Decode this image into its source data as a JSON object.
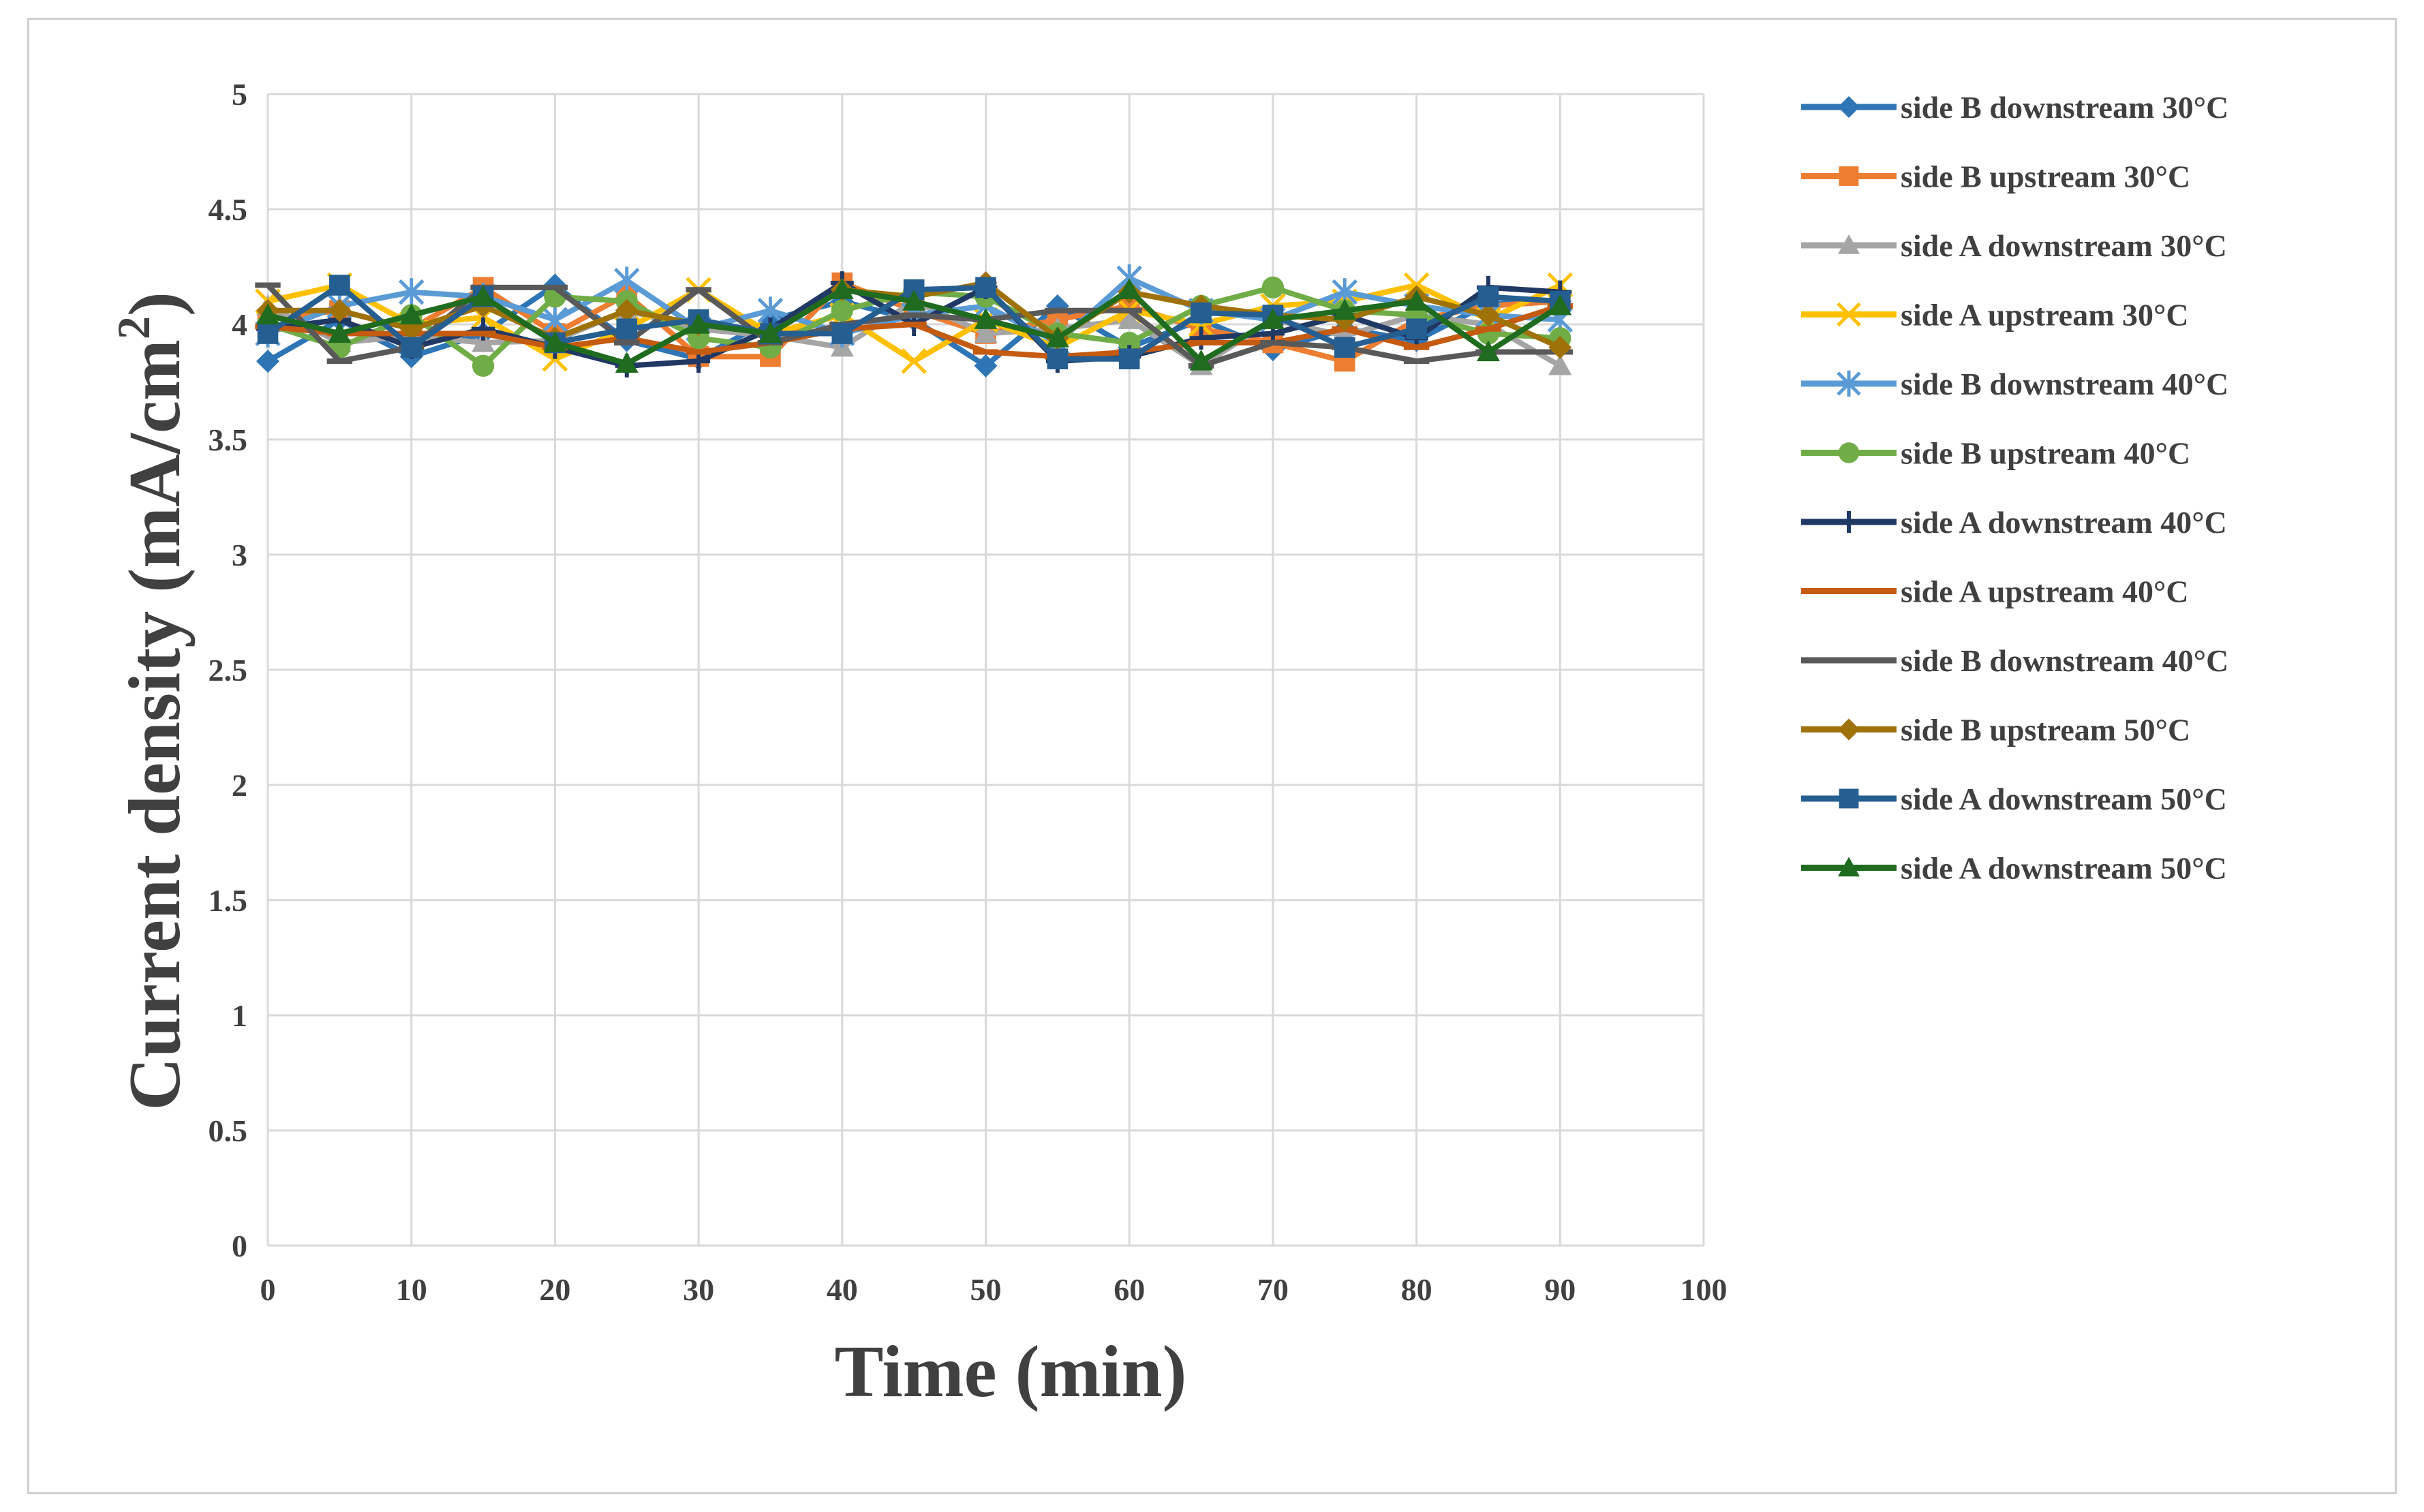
{
  "chart_data": {
    "type": "line",
    "title": "",
    "xlabel": "Time (min)",
    "ylabel_main": "Current density (mA/cm",
    "ylabel_sup": "2",
    "ylabel_close": ")",
    "xlim": [
      0,
      100
    ],
    "ylim": [
      0,
      5
    ],
    "grid": true,
    "legend_position": "right",
    "x_ticks": [
      "0",
      "10",
      "20",
      "30",
      "40",
      "50",
      "60",
      "70",
      "80",
      "90",
      "100"
    ],
    "y_ticks": [
      "0",
      "0.5",
      "1",
      "1.5",
      "2",
      "2.5",
      "3",
      "3.5",
      "4",
      "4.5",
      "5"
    ],
    "x": [
      0,
      5,
      10,
      15,
      20,
      25,
      30,
      35,
      40,
      45,
      50,
      55,
      60,
      65,
      70,
      75,
      80,
      85,
      90
    ],
    "series": [
      {
        "name": "side B downstream 30°C",
        "color": "#2e75b6",
        "marker": "diamond",
        "values": [
          3.84,
          4.02,
          3.86,
          3.96,
          4.17,
          3.93,
          3.85,
          4.02,
          4.1,
          4.02,
          3.82,
          4.08,
          3.9,
          4.02,
          3.89,
          3.98,
          3.93,
          4.09,
          4.1
        ]
      },
      {
        "name": "side B upstream 30°C",
        "color": "#ed7d31",
        "marker": "square",
        "values": [
          4.02,
          4.06,
          3.98,
          4.16,
          3.96,
          4.13,
          3.86,
          3.86,
          4.18,
          4.06,
          3.96,
          4.02,
          4.08,
          3.98,
          3.92,
          3.84,
          4.02,
          4.08,
          4.1
        ]
      },
      {
        "name": "side A downstream 30°C",
        "color": "#a5a5a5",
        "marker": "triangle",
        "values": [
          4.08,
          3.92,
          3.95,
          3.92,
          3.93,
          4.06,
          3.98,
          3.95,
          3.9,
          4.1,
          3.96,
          3.98,
          4.02,
          3.82,
          4.02,
          3.95,
          4.04,
          4.0,
          3.82
        ]
      },
      {
        "name": "side A upstream 30°C",
        "color": "#ffc000",
        "marker": "x",
        "values": [
          4.1,
          4.17,
          4.0,
          4.03,
          3.85,
          3.98,
          4.15,
          3.96,
          4.04,
          3.84,
          4.02,
          3.9,
          4.06,
          4.0,
          4.08,
          4.1,
          4.17,
          4.02,
          4.17
        ]
      },
      {
        "name": "side B downstream 40°C",
        "color": "#5b9bd5",
        "marker": "asterisk",
        "values": [
          3.96,
          4.08,
          4.14,
          4.12,
          4.02,
          4.19,
          3.98,
          4.06,
          3.96,
          4.04,
          4.08,
          3.92,
          4.2,
          4.06,
          4.02,
          4.14,
          4.08,
          4.04,
          4.02
        ]
      },
      {
        "name": "side B upstream 40°C",
        "color": "#70ad47",
        "marker": "circle",
        "values": [
          4.0,
          3.9,
          4.04,
          3.82,
          4.12,
          4.1,
          3.94,
          3.9,
          4.06,
          4.14,
          4.12,
          3.96,
          3.92,
          4.08,
          4.16,
          4.06,
          4.04,
          3.96,
          3.94
        ]
      },
      {
        "name": "side A downstream 40°C",
        "color": "#203864",
        "marker": "plus",
        "values": [
          3.98,
          4.02,
          3.9,
          3.98,
          3.9,
          3.82,
          3.84,
          3.98,
          4.18,
          4.0,
          4.16,
          3.84,
          3.86,
          3.94,
          3.96,
          4.04,
          3.94,
          4.16,
          4.14
        ]
      },
      {
        "name": "side A upstream 40°C",
        "color": "#c55a11",
        "marker": "dash",
        "values": [
          3.99,
          3.96,
          3.96,
          3.96,
          3.9,
          3.94,
          3.88,
          3.92,
          3.98,
          4.0,
          3.88,
          3.86,
          3.88,
          3.92,
          3.92,
          3.98,
          3.9,
          3.98,
          4.08
        ]
      },
      {
        "name": "side B downstream 40°C",
        "color": "#595959",
        "marker": "dash",
        "values": [
          4.17,
          3.84,
          3.9,
          4.16,
          4.16,
          3.92,
          4.15,
          3.92,
          4.0,
          4.04,
          4.02,
          4.06,
          4.06,
          3.82,
          3.92,
          3.9,
          3.84,
          3.88,
          3.88
        ]
      },
      {
        "name": "side B upstream 50°C",
        "color": "#9e7109",
        "marker": "diamond",
        "values": [
          4.06,
          4.06,
          3.98,
          4.08,
          3.94,
          4.06,
          4.0,
          3.96,
          4.15,
          4.12,
          4.18,
          3.94,
          4.14,
          4.08,
          4.04,
          4.02,
          4.12,
          4.04,
          3.9
        ]
      },
      {
        "name": "side A downstream 50°C",
        "color": "#255e91",
        "marker": "square",
        "values": [
          3.96,
          4.17,
          3.9,
          4.12,
          3.92,
          3.98,
          4.02,
          3.96,
          3.96,
          4.15,
          4.16,
          3.85,
          3.85,
          4.05,
          4.04,
          3.9,
          3.98,
          4.12,
          4.1
        ]
      },
      {
        "name": "side A downstream 50°C",
        "color": "#1f6b1f",
        "marker": "triangle",
        "values": [
          4.04,
          3.96,
          4.04,
          4.12,
          3.92,
          3.83,
          4.0,
          3.96,
          4.15,
          4.1,
          4.02,
          3.94,
          4.15,
          3.84,
          4.02,
          4.06,
          4.1,
          3.88,
          4.08
        ]
      }
    ]
  }
}
